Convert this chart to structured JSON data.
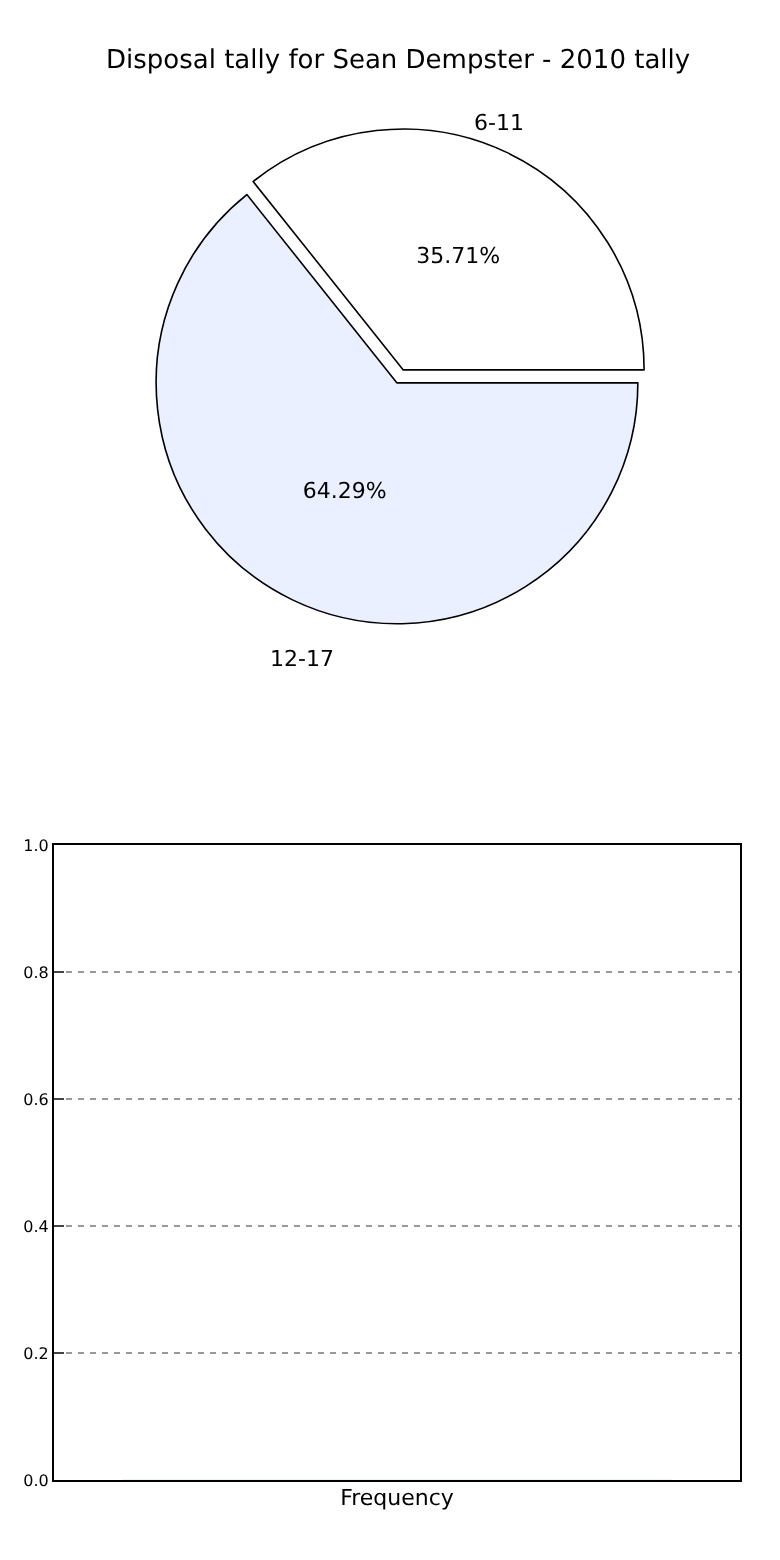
{
  "chart_data": [
    {
      "type": "pie",
      "title": "Disposal tally for Sean Dempster - 2010 tally",
      "categories": [
        "6-11",
        "12-17"
      ],
      "values": [
        35.71,
        64.29
      ],
      "colors": [
        "#ffffff",
        "#eaf0ff"
      ],
      "value_labels": [
        "35.71%",
        "64.29%"
      ]
    },
    {
      "type": "bar",
      "xlabel": "Frequency",
      "categories": [
        null
      ],
      "values": [
        0
      ],
      "ylim": [
        0,
        1
      ],
      "yticks": [
        {
          "value": 0,
          "label": "0.0"
        },
        0.2,
        0.4,
        0.6,
        0.8,
        {
          "value": 1,
          "label": "1.0"
        }
      ],
      "grid": "y"
    }
  ]
}
